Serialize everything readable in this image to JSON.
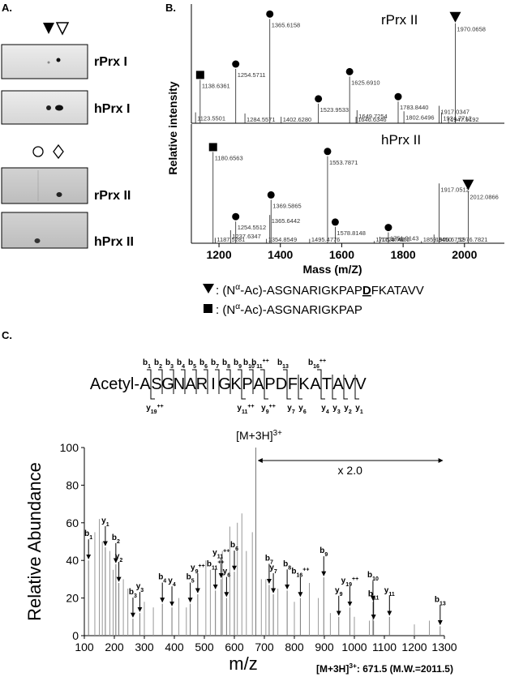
{
  "panel_labels": [
    "A.",
    "B.",
    "C."
  ],
  "gels": [
    "rPrx I",
    "hPrx I",
    "rPrx II",
    "hPrx II"
  ],
  "chart_data": [
    {
      "type": "spectrum",
      "title": "rPrx II",
      "ylabel": "Relative intensity",
      "xlim": [
        1110,
        2130
      ],
      "ylim": [
        0,
        100
      ],
      "peaks": [
        {
          "x": 1138.6361,
          "label": "1138.6361",
          "y": 40,
          "marker": "square"
        },
        {
          "x": 1123.5501,
          "label": "1123.5501",
          "y": 10
        },
        {
          "x": 1254.5711,
          "label": "1254.5711",
          "y": 50,
          "marker": "circle"
        },
        {
          "x": 1284.5571,
          "label": "1284.5571",
          "y": 9
        },
        {
          "x": 1365.6158,
          "label": "1365.6158",
          "y": 96,
          "marker": "circle"
        },
        {
          "x": 1402.628,
          "label": "1402.6280",
          "y": 6
        },
        {
          "x": 1523.9533,
          "label": "1523.9533",
          "y": 18,
          "marker": "circle"
        },
        {
          "x": 1625.691,
          "label": "1625.6910",
          "y": 43,
          "marker": "circle"
        },
        {
          "x": 1649.7254,
          "label": "1649.7254",
          "y": 12
        },
        {
          "x": 1646.6346,
          "label": "1646.6346",
          "y": 6
        },
        {
          "x": 1783.844,
          "label": "1783.8440",
          "y": 20,
          "marker": "circle"
        },
        {
          "x": 1802.6496,
          "label": "1802.6496",
          "y": 11
        },
        {
          "x": 1917.0347,
          "label": "1917.0347",
          "y": 16
        },
        {
          "x": 1924.7712,
          "label": "1924.7712",
          "y": 10
        },
        {
          "x": 1947.9192,
          "label": "1947.9192",
          "y": 5
        },
        {
          "x": 1970.0658,
          "label": "1970.0658",
          "y": 92,
          "marker": "triangle"
        }
      ]
    },
    {
      "type": "spectrum",
      "title": "hPrx II",
      "xlabel": "Mass (m/Z)",
      "xlim": [
        1110,
        2130
      ],
      "ylim": [
        0,
        100
      ],
      "xticks": [
        1200,
        1400,
        1600,
        1800,
        2000
      ],
      "peaks": [
        {
          "x": 1180.6563,
          "label": "1180.6563",
          "y": 84,
          "marker": "square"
        },
        {
          "x": 1187.5281,
          "label": "1187.5281",
          "y": 5
        },
        {
          "x": 1237.6347,
          "label": "1237.6347",
          "y": 12
        },
        {
          "x": 1254.5512,
          "label": "1254.5512",
          "y": 20,
          "marker": "circle"
        },
        {
          "x": 1354.8549,
          "label": "1354.8549",
          "y": 4
        },
        {
          "x": 1365.6442,
          "label": "1365.6442",
          "y": 26
        },
        {
          "x": 1369.5865,
          "label": "1369.5865",
          "y": 40,
          "marker": "circle"
        },
        {
          "x": 1495.4776,
          "label": "1495.4776",
          "y": 4
        },
        {
          "x": 1553.7871,
          "label": "1553.7871",
          "y": 80,
          "marker": "circle"
        },
        {
          "x": 1578.8148,
          "label": "1578.8148",
          "y": 15,
          "marker": "circle"
        },
        {
          "x": 1705.4746,
          "label": "1705.4746",
          "y": 2
        },
        {
          "x": 1723.7652,
          "label": "1723.7652",
          "y": 6
        },
        {
          "x": 1751.9143,
          "label": "1751.9143",
          "y": 10,
          "marker": "circle"
        },
        {
          "x": 1859.845,
          "label": "1859.8450",
          "y": 2
        },
        {
          "x": 1900.6752,
          "label": "1900.6752",
          "y": 8
        },
        {
          "x": 1917.0512,
          "label": "1917.0512",
          "y": 55
        },
        {
          "x": 1976.7821,
          "label": "1976.7821",
          "y": 2
        },
        {
          "x": 2012.0866,
          "label": "2012.0866",
          "y": 48,
          "marker": "triangle"
        }
      ]
    },
    {
      "type": "msms",
      "xlabel": "m/z",
      "ylabel": "Relative Abundance",
      "xlim": [
        100,
        1300
      ],
      "xticks": [
        100,
        200,
        300,
        400,
        500,
        600,
        700,
        800,
        900,
        1000,
        1100,
        1200,
        1300
      ],
      "ylim": [
        0,
        100
      ],
      "yticks": [
        0,
        20,
        40,
        60,
        80,
        100
      ],
      "precursor": {
        "x": 671.5,
        "base": "[M+3H]",
        "sup": "3+"
      },
      "scale_note": "x 2.0",
      "footnote": {
        "base": "[M+3H]",
        "sup": "3+",
        "text": ": 671.5 (M.W.=2011.5)"
      },
      "annotated_peaks": [
        {
          "ion": "b",
          "n": "1",
          "x": 114,
          "y": 40
        },
        {
          "ion": "y",
          "n": "1",
          "x": 170,
          "y": 47
        },
        {
          "ion": "b",
          "n": "2",
          "x": 205,
          "y": 38
        },
        {
          "ion": "y",
          "n": "2",
          "x": 215,
          "y": 28
        },
        {
          "ion": "b",
          "n": "3",
          "x": 262,
          "y": 9
        },
        {
          "ion": "y",
          "n": "3",
          "x": 285,
          "y": 12
        },
        {
          "ion": "b",
          "n": "4",
          "x": 360,
          "y": 17
        },
        {
          "ion": "y",
          "n": "4",
          "x": 392,
          "y": 15
        },
        {
          "ion": "b",
          "n": "5",
          "x": 453,
          "y": 17
        },
        {
          "ion": "y",
          "n": "9",
          "charge": "++",
          "x": 478,
          "y": 22
        },
        {
          "ion": "b",
          "n": "11",
          "charge": "++",
          "x": 537,
          "y": 24
        },
        {
          "ion": "y",
          "n": "11",
          "charge": "++",
          "x": 556,
          "y": 30
        },
        {
          "ion": "y",
          "n": "6",
          "x": 574,
          "y": 20
        },
        {
          "ion": "b",
          "n": "6",
          "x": 600,
          "y": 34
        },
        {
          "ion": "b",
          "n": "7",
          "x": 716,
          "y": 27
        },
        {
          "ion": "y",
          "n": "7",
          "x": 730,
          "y": 22
        },
        {
          "ion": "b",
          "n": "8",
          "x": 776,
          "y": 24
        },
        {
          "ion": "b",
          "n": "16",
          "charge": "++",
          "x": 820,
          "y": 20
        },
        {
          "ion": "b",
          "n": "9",
          "x": 898,
          "y": 31
        },
        {
          "ion": "y",
          "n": "9",
          "x": 948,
          "y": 10
        },
        {
          "ion": "y",
          "n": "19",
          "charge": "++",
          "x": 985,
          "y": 15
        },
        {
          "ion": "b",
          "n": "10",
          "x": 1062,
          "y": 18
        },
        {
          "ion": "b",
          "n": "11",
          "x": 1064,
          "y": 8
        },
        {
          "ion": "y",
          "n": "11",
          "x": 1117,
          "y": 10
        },
        {
          "ion": "b",
          "n": "13",
          "x": 1286,
          "y": 5
        }
      ],
      "peaks": {
        "x": [
          135,
          150,
          160,
          185,
          196,
          230,
          245,
          300,
          330,
          415,
          440,
          505,
          520,
          560,
          585,
          610,
          625,
          640,
          660,
          690,
          705,
          745,
          800,
          850,
          880,
          920,
          1000,
          1050,
          1200,
          1250
        ],
        "values": [
          55,
          62,
          50,
          45,
          35,
          30,
          25,
          18,
          15,
          20,
          15,
          40,
          35,
          45,
          58,
          60,
          65,
          45,
          55,
          30,
          30,
          25,
          18,
          28,
          20,
          12,
          10,
          8,
          6,
          8
        ]
      }
    }
  ],
  "legend_b": [
    {
      "marker": "triangle",
      "parts": [
        {
          "text": ": (N"
        },
        {
          "text": "α",
          "style": "sup"
        },
        {
          "text": "-Ac)-ASGNARIGKPAP"
        },
        {
          "text": "D",
          "style": "bold-underline"
        },
        {
          "text": "FKATAVV"
        }
      ]
    },
    {
      "marker": "square",
      "parts": [
        {
          "text": ": (N"
        },
        {
          "text": "α",
          "style": "sup"
        },
        {
          "text": "-Ac)-ASGNARIGKPAP"
        }
      ]
    }
  ],
  "sequence": {
    "prefix": "Acetyl-",
    "residues": [
      "A",
      "S",
      "G",
      "N",
      "A",
      "R",
      "I",
      "G",
      "K",
      "P",
      "A",
      "P",
      "D",
      "F",
      "K",
      "A",
      "T",
      "A",
      "V",
      "V"
    ],
    "b_ions": [
      {
        "ion": "b",
        "n": "1"
      },
      {
        "ion": "b",
        "n": "2"
      },
      {
        "ion": "b",
        "n": "3"
      },
      {
        "ion": "b",
        "n": "4"
      },
      {
        "ion": "b",
        "n": "5"
      },
      {
        "ion": "b",
        "n": "6"
      },
      {
        "ion": "b",
        "n": "7"
      },
      {
        "ion": "b",
        "n": "8"
      },
      {
        "ion": "b",
        "n": "9"
      },
      {
        "ion": "b",
        "n": "10"
      },
      {
        "ion": "b",
        "n": "11",
        "charge": "++"
      },
      {
        "ion": "b",
        "n": "13"
      },
      {
        "ion": "b",
        "n": "16",
        "charge": "++"
      }
    ],
    "y_ions": [
      {
        "ion": "y",
        "n": "19",
        "charge": "++"
      },
      {
        "ion": "y",
        "n": "11",
        "charge": "++"
      },
      {
        "ion": "y",
        "n": "9",
        "charge": "++"
      },
      {
        "ion": "y",
        "n": "7"
      },
      {
        "ion": "y",
        "n": "6"
      },
      {
        "ion": "y",
        "n": "4"
      },
      {
        "ion": "y",
        "n": "3"
      },
      {
        "ion": "y",
        "n": "2"
      },
      {
        "ion": "y",
        "n": "1"
      }
    ]
  }
}
